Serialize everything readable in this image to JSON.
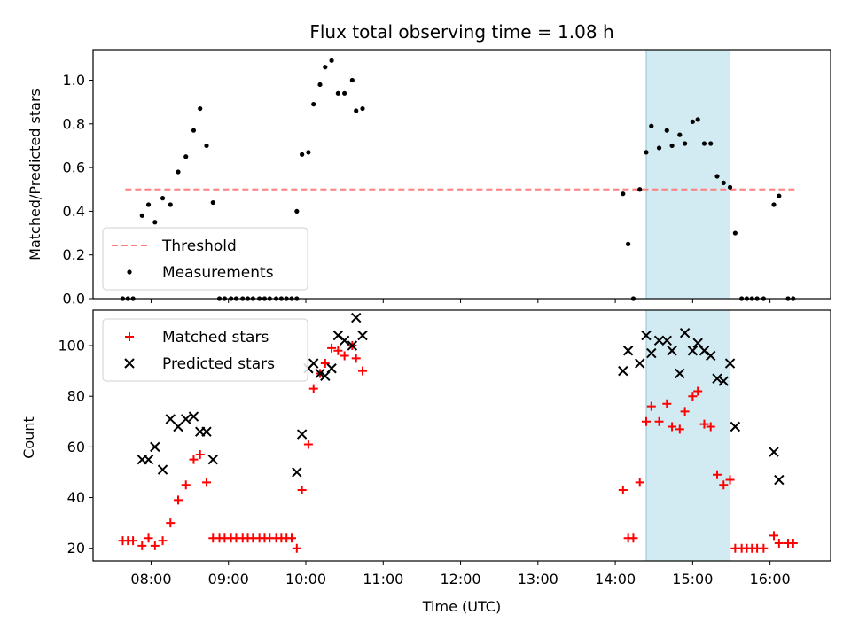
{
  "chart_data": [
    {
      "type": "scatter",
      "title": "Flux total observing time = 1.08 h",
      "ylabel": "Matched/Predicted stars",
      "xlabel": "",
      "xlim": [
        "07:15",
        "16:47"
      ],
      "ylim": [
        0,
        1.14
      ],
      "yticks": [
        "0.0",
        "0.2",
        "0.4",
        "0.6",
        "0.8",
        "1.0"
      ],
      "shaded_span": [
        "14:24",
        "15:29"
      ],
      "shaded_color": "#add8e6",
      "legend_placement": "lower-left",
      "threshold": {
        "name": "Threshold",
        "value": 0.5,
        "x_range": [
          "07:40",
          "16:20"
        ],
        "color": "#ff7f7f",
        "style": "dashed"
      },
      "series": [
        {
          "name": "Measurements",
          "color": "#000000",
          "marker": "dot",
          "points": [
            [
              "07:38",
              0
            ],
            [
              "07:42",
              0
            ],
            [
              "07:46",
              0
            ],
            [
              "07:53",
              0.38
            ],
            [
              "07:58",
              0.43
            ],
            [
              "08:03",
              0.35
            ],
            [
              "08:09",
              0.46
            ],
            [
              "08:15",
              0.43
            ],
            [
              "08:21",
              0.58
            ],
            [
              "08:27",
              0.65
            ],
            [
              "08:33",
              0.77
            ],
            [
              "08:38",
              0.87
            ],
            [
              "08:43",
              0.7
            ],
            [
              "08:48",
              0.44
            ],
            [
              "08:53",
              0
            ],
            [
              "08:57",
              0
            ],
            [
              "09:02",
              0
            ],
            [
              "09:06",
              0
            ],
            [
              "09:11",
              0
            ],
            [
              "09:15",
              0
            ],
            [
              "09:19",
              0
            ],
            [
              "09:24",
              0
            ],
            [
              "09:28",
              0
            ],
            [
              "09:32",
              0
            ],
            [
              "09:37",
              0
            ],
            [
              "09:41",
              0
            ],
            [
              "09:45",
              0
            ],
            [
              "09:49",
              0
            ],
            [
              "09:53",
              0
            ],
            [
              "09:53",
              0.4
            ],
            [
              "09:57",
              0.66
            ],
            [
              "10:02",
              0.67
            ],
            [
              "10:06",
              0.89
            ],
            [
              "10:11",
              0.98
            ],
            [
              "10:15",
              1.06
            ],
            [
              "10:20",
              1.09
            ],
            [
              "10:25",
              0.94
            ],
            [
              "10:30",
              0.94
            ],
            [
              "10:36",
              1.0
            ],
            [
              "10:39",
              0.86
            ],
            [
              "10:44",
              0.87
            ],
            [
              "14:06",
              0.48
            ],
            [
              "14:10",
              0.25
            ],
            [
              "14:14",
              0
            ],
            [
              "14:19",
              0.5
            ],
            [
              "14:24",
              0.67
            ],
            [
              "14:28",
              0.79
            ],
            [
              "14:34",
              0.69
            ],
            [
              "14:40",
              0.77
            ],
            [
              "14:44",
              0.7
            ],
            [
              "14:50",
              0.75
            ],
            [
              "14:54",
              0.71
            ],
            [
              "15:00",
              0.81
            ],
            [
              "15:04",
              0.82
            ],
            [
              "15:09",
              0.71
            ],
            [
              "15:14",
              0.71
            ],
            [
              "15:19",
              0.56
            ],
            [
              "15:24",
              0.53
            ],
            [
              "15:29",
              0.51
            ],
            [
              "15:33",
              0.3
            ],
            [
              "15:38",
              0
            ],
            [
              "15:42",
              0
            ],
            [
              "15:46",
              0
            ],
            [
              "15:50",
              0
            ],
            [
              "15:55",
              0
            ],
            [
              "16:03",
              0.43
            ],
            [
              "16:07",
              0.47
            ],
            [
              "16:14",
              0
            ],
            [
              "16:18",
              0
            ]
          ]
        }
      ]
    },
    {
      "type": "scatter",
      "title": "",
      "ylabel": "Count",
      "xlabel": "Time (UTC)",
      "xlim": [
        "07:15",
        "16:47"
      ],
      "ylim": [
        15,
        114
      ],
      "yticks": [
        "20",
        "40",
        "60",
        "80",
        "100"
      ],
      "xticks": [
        "08:00",
        "09:00",
        "10:00",
        "11:00",
        "12:00",
        "13:00",
        "14:00",
        "15:00",
        "16:00"
      ],
      "shaded_span": [
        "14:24",
        "15:29"
      ],
      "shaded_color": "#add8e6",
      "legend_placement": "upper-left",
      "series": [
        {
          "name": "Matched stars",
          "color": "#ff0000",
          "marker": "plus",
          "points": [
            [
              "07:38",
              23
            ],
            [
              "07:42",
              23
            ],
            [
              "07:46",
              23
            ],
            [
              "07:53",
              21
            ],
            [
              "07:58",
              24
            ],
            [
              "08:03",
              21
            ],
            [
              "08:09",
              23
            ],
            [
              "08:15",
              30
            ],
            [
              "08:21",
              39
            ],
            [
              "08:27",
              45
            ],
            [
              "08:33",
              55
            ],
            [
              "08:38",
              57
            ],
            [
              "08:43",
              46
            ],
            [
              "08:48",
              24
            ],
            [
              "08:53",
              24
            ],
            [
              "08:57",
              24
            ],
            [
              "09:02",
              24
            ],
            [
              "09:06",
              24
            ],
            [
              "09:11",
              24
            ],
            [
              "09:15",
              24
            ],
            [
              "09:19",
              24
            ],
            [
              "09:24",
              24
            ],
            [
              "09:28",
              24
            ],
            [
              "09:32",
              24
            ],
            [
              "09:37",
              24
            ],
            [
              "09:41",
              24
            ],
            [
              "09:45",
              24
            ],
            [
              "09:49",
              24
            ],
            [
              "09:53",
              20
            ],
            [
              "09:57",
              43
            ],
            [
              "10:02",
              61
            ],
            [
              "10:06",
              83
            ],
            [
              "10:11",
              89
            ],
            [
              "10:15",
              93
            ],
            [
              "10:20",
              99
            ],
            [
              "10:25",
              98
            ],
            [
              "10:30",
              96
            ],
            [
              "10:36",
              100
            ],
            [
              "10:39",
              95
            ],
            [
              "10:44",
              90
            ],
            [
              "14:06",
              43
            ],
            [
              "14:10",
              24
            ],
            [
              "14:14",
              24
            ],
            [
              "14:19",
              46
            ],
            [
              "14:24",
              70
            ],
            [
              "14:28",
              76
            ],
            [
              "14:34",
              70
            ],
            [
              "14:40",
              77
            ],
            [
              "14:44",
              68
            ],
            [
              "14:50",
              67
            ],
            [
              "14:54",
              74
            ],
            [
              "15:00",
              80
            ],
            [
              "15:04",
              82
            ],
            [
              "15:09",
              69
            ],
            [
              "15:14",
              68
            ],
            [
              "15:19",
              49
            ],
            [
              "15:24",
              45
            ],
            [
              "15:29",
              47
            ],
            [
              "15:33",
              20
            ],
            [
              "15:38",
              20
            ],
            [
              "15:42",
              20
            ],
            [
              "15:46",
              20
            ],
            [
              "15:50",
              20
            ],
            [
              "15:55",
              20
            ],
            [
              "16:03",
              25
            ],
            [
              "16:07",
              22
            ],
            [
              "16:14",
              22
            ],
            [
              "16:18",
              22
            ]
          ]
        },
        {
          "name": "Predicted stars",
          "color": "#000000",
          "marker": "x",
          "points": [
            [
              "07:53",
              55
            ],
            [
              "07:58",
              55
            ],
            [
              "08:03",
              60
            ],
            [
              "08:09",
              51
            ],
            [
              "08:15",
              71
            ],
            [
              "08:21",
              68
            ],
            [
              "08:27",
              71
            ],
            [
              "08:33",
              72
            ],
            [
              "08:38",
              66
            ],
            [
              "08:43",
              66
            ],
            [
              "08:48",
              55
            ],
            [
              "09:53",
              50
            ],
            [
              "09:57",
              65
            ],
            [
              "10:02",
              91
            ],
            [
              "10:06",
              93
            ],
            [
              "10:11",
              89
            ],
            [
              "10:15",
              88
            ],
            [
              "10:20",
              91
            ],
            [
              "10:25",
              104
            ],
            [
              "10:30",
              102
            ],
            [
              "10:36",
              100
            ],
            [
              "10:39",
              111
            ],
            [
              "10:44",
              104
            ],
            [
              "14:06",
              90
            ],
            [
              "14:10",
              98
            ],
            [
              "14:19",
              93
            ],
            [
              "14:24",
              104
            ],
            [
              "14:28",
              97
            ],
            [
              "14:34",
              102
            ],
            [
              "14:40",
              102
            ],
            [
              "14:44",
              98
            ],
            [
              "14:50",
              89
            ],
            [
              "14:54",
              105
            ],
            [
              "15:00",
              98
            ],
            [
              "15:04",
              101
            ],
            [
              "15:09",
              98
            ],
            [
              "15:14",
              96
            ],
            [
              "15:19",
              87
            ],
            [
              "15:24",
              86
            ],
            [
              "15:29",
              93
            ],
            [
              "15:33",
              68
            ],
            [
              "16:03",
              58
            ],
            [
              "16:07",
              47
            ]
          ]
        }
      ]
    }
  ]
}
